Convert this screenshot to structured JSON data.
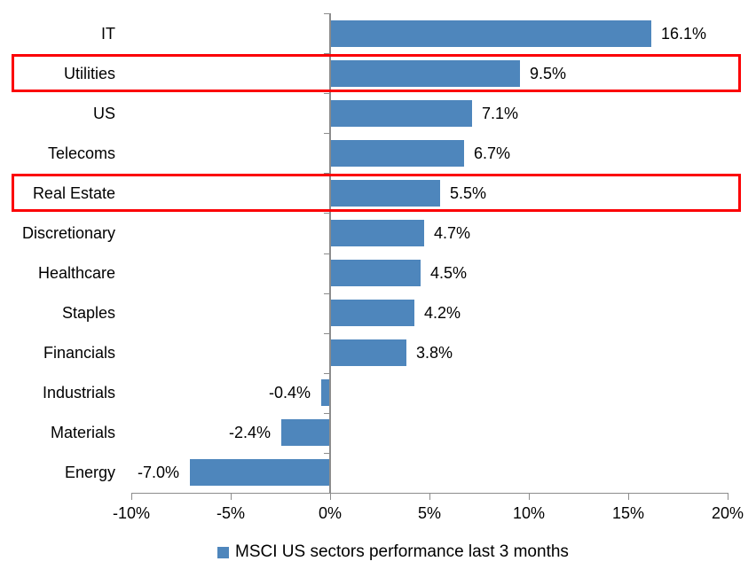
{
  "chart_data": {
    "type": "bar",
    "orientation": "horizontal",
    "categories": [
      "IT",
      "Utilities",
      "US",
      "Telecoms",
      "Real Estate",
      "Discretionary",
      "Healthcare",
      "Staples",
      "Financials",
      "Industrials",
      "Materials",
      "Energy"
    ],
    "values": [
      16.1,
      9.5,
      7.1,
      6.7,
      5.5,
      4.7,
      4.5,
      4.2,
      3.8,
      -0.4,
      -2.4,
      -7.0
    ],
    "value_labels": [
      "16.1%",
      "9.5%",
      "7.1%",
      "6.7%",
      "5.5%",
      "4.7%",
      "4.5%",
      "4.2%",
      "3.8%",
      "-0.4%",
      "-2.4%",
      "-7.0%"
    ],
    "x_ticks": [
      {
        "value": -10,
        "label": "-10%"
      },
      {
        "value": -5,
        "label": "-5%"
      },
      {
        "value": 0,
        "label": "0%"
      },
      {
        "value": 5,
        "label": "5%"
      },
      {
        "value": 10,
        "label": "10%"
      },
      {
        "value": 15,
        "label": "15%"
      },
      {
        "value": 20,
        "label": "20%"
      }
    ],
    "xlim": [
      -10,
      20
    ],
    "grid": false,
    "legend_position": "bottom-center",
    "legend": "MSCI US sectors performance last 3 months",
    "highlighted_categories": [
      "Utilities",
      "Real Estate"
    ],
    "colors": {
      "bar": "#4E86BC",
      "highlight_border": "#FB0004",
      "axis": "#8C8C8C",
      "text": "#000000",
      "background": "#FFFFFF"
    }
  }
}
